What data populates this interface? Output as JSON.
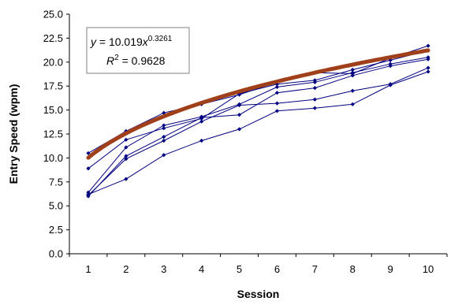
{
  "chart_data": {
    "type": "scatter",
    "title": "",
    "xlabel": "Session",
    "ylabel": "Entry Speed (wpm)",
    "x": [
      1,
      2,
      3,
      4,
      5,
      6,
      7,
      8,
      9,
      10
    ],
    "xlim": [
      0.5,
      10.5
    ],
    "ylim": [
      0,
      25
    ],
    "y_ticks": [
      "0.0",
      "2.5",
      "5.0",
      "7.5",
      "10.0",
      "12.5",
      "15.0",
      "17.5",
      "20.0",
      "22.5",
      "25.0"
    ],
    "x_ticks": [
      "1",
      "2",
      "3",
      "4",
      "5",
      "6",
      "7",
      "8",
      "9",
      "10"
    ],
    "grid": false,
    "series": [
      {
        "values": [
          10.5,
          12.8,
          14.7,
          15.6,
          16.6,
          17.9,
          18.9,
          18.8,
          20.4,
          21.7
        ]
      },
      {
        "values": [
          8.9,
          11.9,
          13.1,
          14.1,
          16.7,
          17.7,
          18.1,
          19.2,
          20.2,
          21.2
        ]
      },
      {
        "values": [
          6.4,
          11.1,
          13.4,
          14.3,
          15.6,
          17.4,
          17.9,
          18.9,
          19.8,
          20.5
        ]
      },
      {
        "values": [
          6.0,
          10.2,
          12.2,
          14.2,
          14.5,
          16.8,
          17.3,
          18.6,
          19.6,
          20.3
        ]
      },
      {
        "values": [
          6.1,
          9.9,
          11.8,
          13.8,
          15.5,
          15.7,
          16.1,
          17.0,
          17.7,
          19.4
        ]
      },
      {
        "values": [
          6.2,
          7.8,
          10.3,
          11.8,
          13.0,
          14.9,
          15.2,
          15.6,
          17.6,
          19.0
        ]
      }
    ],
    "trendline": {
      "type": "power",
      "coefficient": 10.019,
      "exponent": 0.3261,
      "r_squared": 0.9628
    },
    "equation_box": {
      "line1_prefix": "y",
      "line1_mid": " = 10.019",
      "line1_x": "x",
      "line1_exp": "0.3261",
      "line2_prefix": "R",
      "line2_exp": "2",
      "line2_rest": " = 0.9628"
    },
    "colors": {
      "series": "#000080",
      "trendline": "#A0401A",
      "axis": "#000000"
    }
  }
}
